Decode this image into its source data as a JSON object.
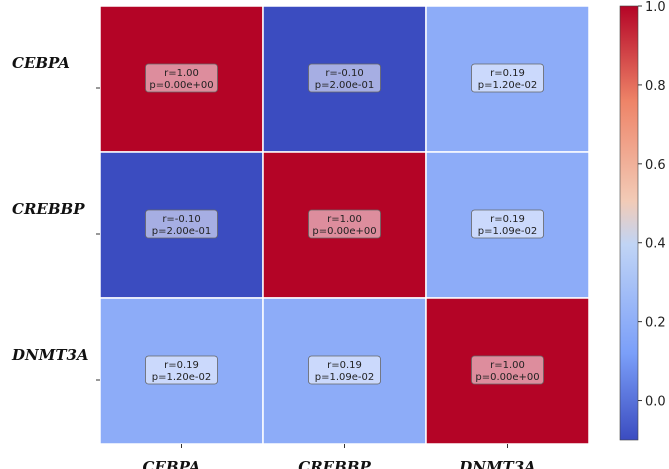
{
  "chart_data": {
    "type": "heatmap",
    "rows": [
      "CEBPA",
      "CREBBP",
      "DNMT3A"
    ],
    "columns": [
      "CEBPA",
      "CREBBP",
      "DNMT3A"
    ],
    "cells": [
      [
        {
          "r": "r=1.00",
          "p": "p=0.00e+00",
          "value": 1.0
        },
        {
          "r": "r=-0.10",
          "p": "p=2.00e-01",
          "value": -0.1
        },
        {
          "r": "r=0.19",
          "p": "p=1.20e-02",
          "value": 0.19
        }
      ],
      [
        {
          "r": "r=-0.10",
          "p": "p=2.00e-01",
          "value": -0.1
        },
        {
          "r": "r=1.00",
          "p": "p=0.00e+00",
          "value": 1.0
        },
        {
          "r": "r=0.19",
          "p": "p=1.09e-02",
          "value": 0.19
        }
      ],
      [
        {
          "r": "r=0.19",
          "p": "p=1.20e-02",
          "value": 0.19
        },
        {
          "r": "r=0.19",
          "p": "p=1.09e-02",
          "value": 0.19
        },
        {
          "r": "r=1.00",
          "p": "p=0.00e+00",
          "value": 1.0
        }
      ]
    ],
    "colorbar": {
      "min": -0.1,
      "max": 1.0,
      "ticks": [
        "1.0",
        "0.8",
        "0.6",
        "0.4",
        "0.2",
        "0.0"
      ],
      "tick_values": [
        1.0,
        0.8,
        0.6,
        0.4,
        0.2,
        0.0
      ],
      "colormap": "coolwarm",
      "colors": [
        "#3b4cc0",
        "#7b9ff9",
        "#c0d4f5",
        "#f2cbb7",
        "#ee8468",
        "#b40426"
      ]
    }
  }
}
